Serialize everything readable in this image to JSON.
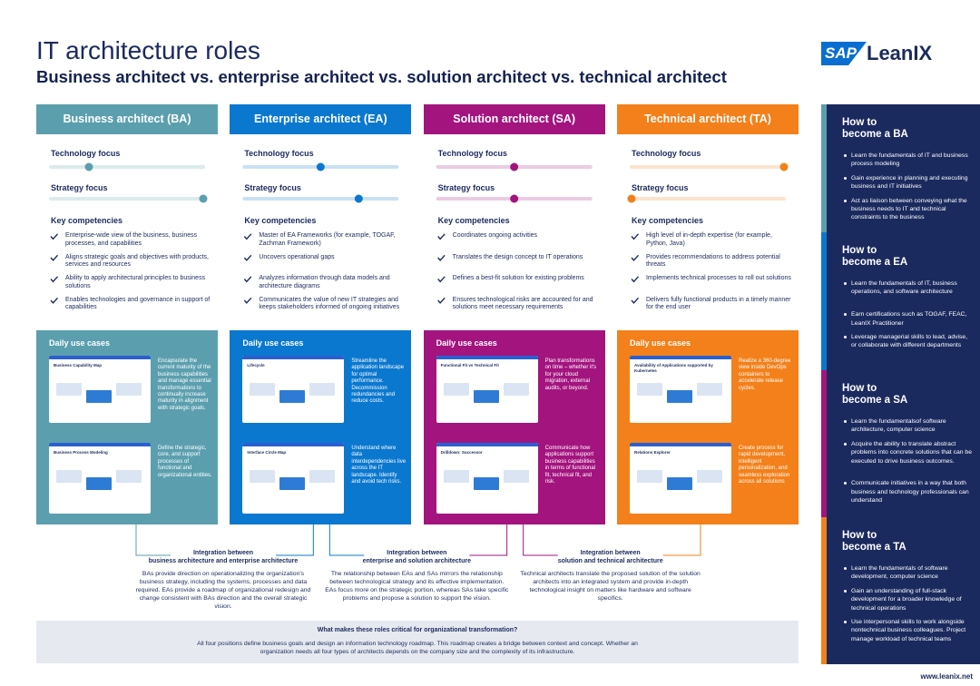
{
  "header": {
    "title": "IT architecture roles",
    "subtitle": "Business architect vs. enterprise architect vs. solution architect vs. technical architect",
    "logo_brand": "SAP",
    "logo_product": "LeanIX"
  },
  "roles": [
    {
      "name": "Business architect (BA)",
      "color": "#5b9fae",
      "technology_focus_label": "Technology focus",
      "technology_focus": 0.25,
      "strategy_focus_label": "Strategy focus",
      "strategy_focus": 1,
      "competencies_title": "Key competencies",
      "competencies": [
        "Enterprise-wide view of the business, business processes, and capabilities",
        "Aligns strategic goals and objectives with products, services and resources",
        "Ability to apply architectural principles to business solutions",
        "Enables technologies and governance in support of capabilities"
      ],
      "use_cases_title": "Daily use cases",
      "use_cases": [
        {
          "thumbnail_title": "Business Capability Map",
          "text": "Encapsulate the current maturity of the business capabilities and manage essential transformations to continually increase maturity in alignment with strategic goals."
        },
        {
          "thumbnail_title": "Business Process Modeling",
          "text": "Define the strategic, core, and support processes of functional and organizational entities."
        }
      ]
    },
    {
      "name": "Enterprise architect (EA)",
      "color": "#0b78cf",
      "technology_focus_label": "Technology focus",
      "technology_focus": 0.5,
      "strategy_focus_label": "Strategy focus",
      "strategy_focus": 0.75,
      "competencies_title": "Key competencies",
      "competencies": [
        "Master of EA Frameworks (for example, TOGAF, Zachman Framework)",
        "Uncovers operational gaps",
        "Analyzes information through data models and architecture diagrams",
        "Communicates the value of new IT strategies and keeps stakeholders informed of ongoing initiatives"
      ],
      "use_cases_title": "Daily use cases",
      "use_cases": [
        {
          "thumbnail_title": "Lifecycle",
          "text": "Streamline the application landscape for optimal performance. Decommission redundancies and reduce costs."
        },
        {
          "thumbnail_title": "Interface Circle Map",
          "text": "Understand where data interdependencies live across the IT landscape. Identify and avoid tech risks."
        }
      ]
    },
    {
      "name": "Solution architect (SA)",
      "color": "#a3147f",
      "technology_focus_label": "Technology focus",
      "technology_focus": 0.5,
      "strategy_focus_label": "Strategy focus",
      "strategy_focus": 0.5,
      "competencies_title": "Key competencies",
      "competencies": [
        "Coordinates ongoing activities",
        "Translates the design concept to IT operations",
        "Defines a best-fit solution for existing problems",
        "Ensures technological risks are accounted for and solutions meet necessary requirements"
      ],
      "use_cases_title": "Daily use cases",
      "use_cases": [
        {
          "thumbnail_title": "Functional Fit vs Technical Fit",
          "text": "Plan transformations on time – whether it's for your cloud migration, external audits, or beyond."
        },
        {
          "thumbnail_title": "Drilldown: Successor",
          "text": "Communicate how applications support business capabilities in terms of functional fit, technical fit, and risk."
        }
      ]
    },
    {
      "name": "Technical architect (TA)",
      "color": "#f3801a",
      "technology_focus_label": "Technology focus",
      "technology_focus": 1,
      "strategy_focus_label": "Strategy focus",
      "strategy_focus": 0,
      "competencies_title": "Key competencies",
      "competencies": [
        "High level of in-depth expertise (for example, Python, Java)",
        "Provides recommendations to address potential threats",
        "Implements technical processes to roll out solutions",
        "Delivers fully functional products in a timely manner for the end user"
      ],
      "use_cases_title": "Daily use cases",
      "use_cases": [
        {
          "thumbnail_title": "Availability of Applications supported by Kubernetes",
          "text": "Realize a 360-degree view inside DevOps containers to accelerate release cycles."
        },
        {
          "thumbnail_title": "Relations Explorer",
          "text": "Create process for rapid development, intelligent personalization, and seamless exploration across all solutions"
        }
      ]
    }
  ],
  "integrations": [
    {
      "title": [
        "Integration between",
        "business architecture and enterprise architecture"
      ],
      "text": "BAs provide direction on operationalizing the organization's business strategy, including the systems, processes and data required. EAs provide a roadmap of organizational redesign and change consistent with BAs direction and the overall strategic vision."
    },
    {
      "title": [
        "Integration between",
        "enterprise and solution architecture"
      ],
      "text": "The relationship between EAs and SAs mirrors the relationship between technological strategy and its effective implementation. EAs focus more on the strategic portion, whereas SAs take specific problems and propose a solution to support the vision."
    },
    {
      "title": [
        "Integration between",
        "solution and technical architecture"
      ],
      "text": "Technical architects translate the proposed solution of the solution architects into an integrated system and provide in-depth technological insight on matters like hardware and software specifics."
    }
  ],
  "summary": {
    "question": "What makes these roles critical for organizational transformation?",
    "text": "All four positions define business goals and design an information technology roadmap. This roadmap creates a bridge between context and concept. Whether an organization needs all four types of architects depends on the company size and the complexity of its infrastructure."
  },
  "sidebar": [
    {
      "title": "How to become a BA",
      "items": [
        "Learn the fundamentals of IT and business process modeling",
        "Gain experience in planning and executing business and IT initiatives",
        "Act as liaison between conveying what the business needs to IT and technical constraints to the business"
      ]
    },
    {
      "title": "How to become a EA",
      "items": [
        "Learn the fundamentals of IT, business operations, and software architecture",
        "Earn certifications such as TOGAF, FEAC, LeanIX Practitioner",
        "Leverage managerial skills to lead, advise, or collaborate with different departments"
      ]
    },
    {
      "title": "How to become a SA",
      "items": [
        "Learn the fundamentalsof software architecture, computer science",
        "Acquire the ability to translate abstract problems into concrete solutions that can be executed to drive business outcomes.",
        "Communicate initiatives in a way that both business and technology professionals can understand"
      ]
    },
    {
      "title": "How to become a TA",
      "items": [
        "Learn the fundamentals of software development, computer science",
        "Gain an understanding of full-stack development for a broader knowledge of technical operations",
        "Use interpersonal skills to work alongside nontechnical business colleagues. Project manage workload of technical teams"
      ]
    }
  ],
  "footer": "www.leanix.net"
}
